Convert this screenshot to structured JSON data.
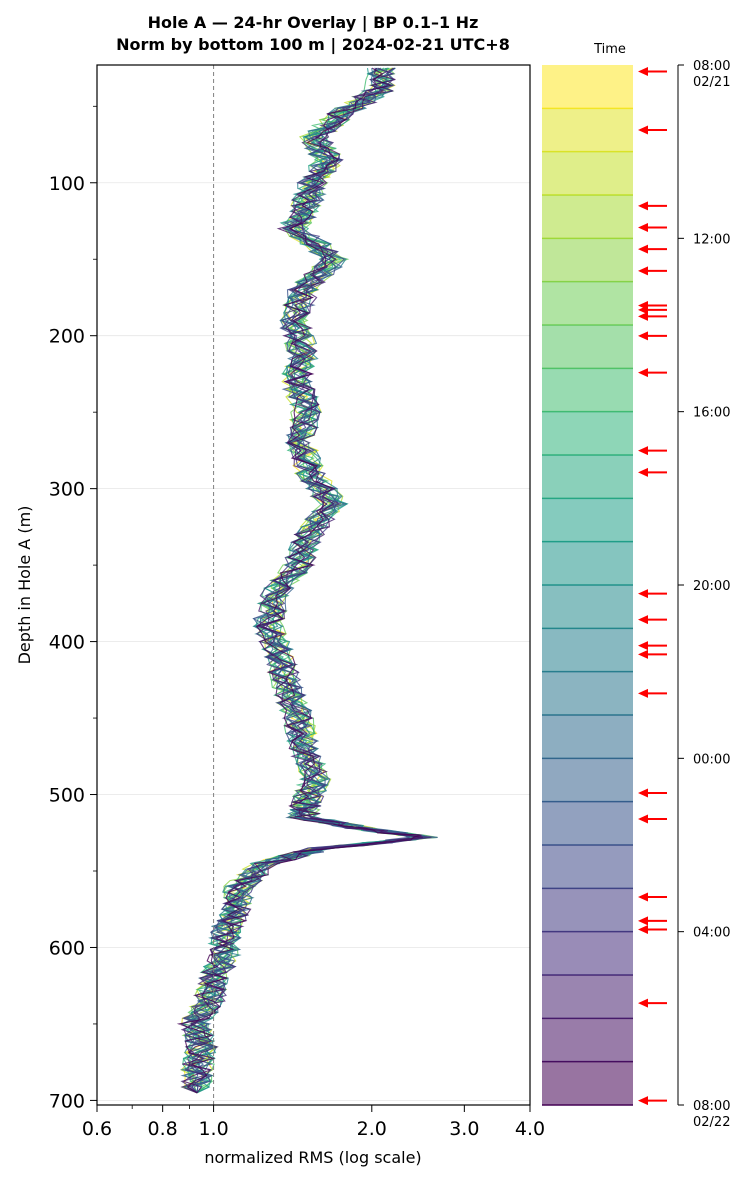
{
  "chart_data": {
    "type": "line",
    "title_line1": "Hole A — 24-hr Overlay  |  BP 0.1–1 Hz",
    "title_line2": "Norm by bottom 100 m  |  2024-02-21 UTC+8",
    "xlabel": "normalized RMS  (log scale)",
    "ylabel": "Depth in Hole A (m)",
    "xscale": "log",
    "xlim": [
      0.6,
      4.0
    ],
    "ylim": [
      703,
      23
    ],
    "x_ticks": [
      0.6,
      0.8,
      1.0,
      2.0,
      3.0,
      4.0
    ],
    "x_tick_labels": [
      "0.6",
      "0.8",
      "1.0",
      "2.0",
      "3.0",
      "4.0"
    ],
    "y_ticks": [
      100,
      200,
      300,
      400,
      500,
      600,
      700
    ],
    "y_tick_labels": [
      "100",
      "200",
      "300",
      "400",
      "500",
      "600",
      "700"
    ],
    "reference_line_x": 1.0,
    "grid": "horizontal",
    "num_series": 24,
    "colormap": "viridis",
    "profile_depths": [
      25,
      40,
      55,
      70,
      85,
      100,
      115,
      130,
      150,
      170,
      190,
      210,
      230,
      250,
      270,
      290,
      310,
      330,
      350,
      370,
      390,
      410,
      430,
      450,
      470,
      490,
      505,
      515,
      522,
      528,
      535,
      545,
      560,
      575,
      590,
      605,
      620,
      635,
      650,
      665,
      680,
      695
    ],
    "mean_profile_x": [
      2.1,
      2.05,
      1.75,
      1.55,
      1.65,
      1.55,
      1.5,
      1.42,
      1.7,
      1.48,
      1.42,
      1.48,
      1.44,
      1.5,
      1.47,
      1.53,
      1.68,
      1.52,
      1.45,
      1.3,
      1.27,
      1.34,
      1.38,
      1.45,
      1.48,
      1.56,
      1.5,
      1.48,
      1.9,
      2.5,
      1.6,
      1.25,
      1.12,
      1.1,
      1.05,
      1.05,
      1.0,
      0.98,
      0.92,
      0.95,
      0.93,
      0.93
    ]
  },
  "colorbar": {
    "label": "Time",
    "tick_labels": [
      "08:00\n02/21",
      "12:00",
      "16:00",
      "20:00",
      "00:00",
      "04:00",
      "08:00\n02/22"
    ],
    "num_bands": 24
  },
  "arrow_times_hours": [
    0.15,
    1.5,
    3.25,
    3.75,
    4.25,
    4.75,
    5.55,
    5.65,
    5.8,
    6.25,
    7.1,
    8.9,
    9.4,
    12.2,
    12.8,
    13.4,
    13.6,
    14.5,
    16.8,
    17.4,
    19.2,
    19.75,
    19.95,
    21.65,
    23.9
  ],
  "colors": {
    "arrow": "#ff0000",
    "ref_line": "#808080"
  }
}
